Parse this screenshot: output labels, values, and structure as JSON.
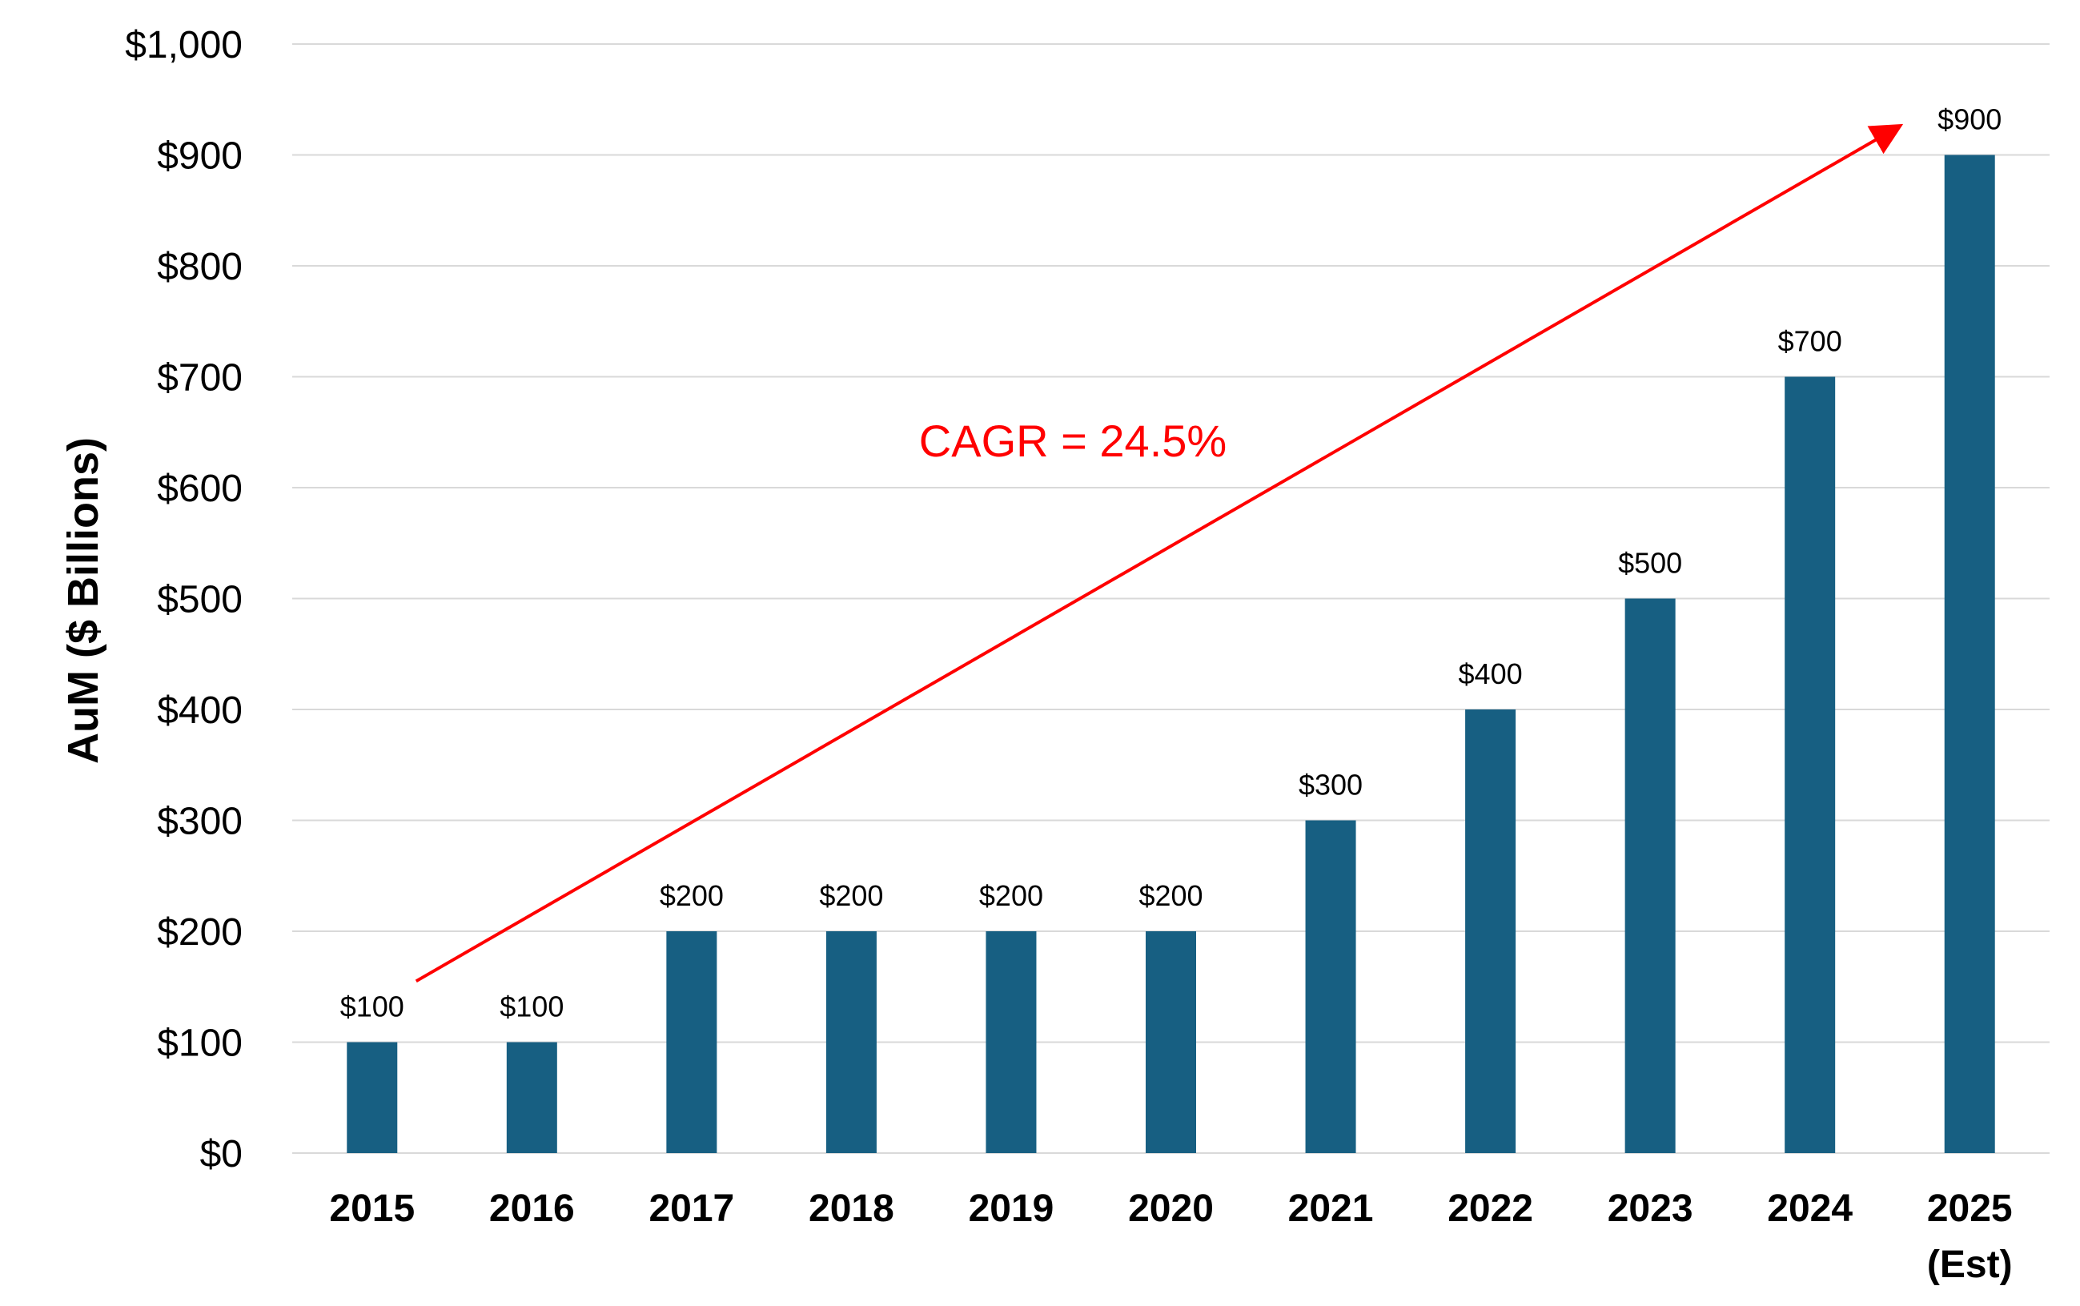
{
  "chart_data": {
    "type": "bar",
    "title": "",
    "xlabel": "",
    "ylabel": "AuM ($ Billions)",
    "categories": [
      "2015",
      "2016",
      "2017",
      "2018",
      "2019",
      "2020",
      "2021",
      "2022",
      "2023",
      "2024",
      "2025 (Est)"
    ],
    "category_lines": [
      [
        "2015"
      ],
      [
        "2016"
      ],
      [
        "2017"
      ],
      [
        "2018"
      ],
      [
        "2019"
      ],
      [
        "2020"
      ],
      [
        "2021"
      ],
      [
        "2022"
      ],
      [
        "2023"
      ],
      [
        "2024"
      ],
      [
        "2025",
        "(Est)"
      ]
    ],
    "series": [
      {
        "values": [
          100,
          100,
          200,
          200,
          200,
          200,
          300,
          400,
          500,
          700,
          900
        ],
        "data_labels": [
          "$100",
          "$100",
          "$200",
          "$200",
          "$200",
          "$200",
          "$300",
          "$400",
          "$500",
          "$700",
          "$900"
        ],
        "color": "#175f82"
      }
    ],
    "ylim": [
      0,
      1000
    ],
    "yticks": [
      0,
      100,
      200,
      300,
      400,
      500,
      600,
      700,
      800,
      900,
      1000
    ],
    "ytick_labels": [
      "$0",
      "$100",
      "$200",
      "$300",
      "$400",
      "$500",
      "$600",
      "$700",
      "$800",
      "$900",
      "$1,000"
    ],
    "grid": true,
    "gridline_color": "#d9d9d9",
    "legend": "none",
    "annotation": {
      "text": "CAGR = 24.5%",
      "color": "#ff0000",
      "arrow_from": {
        "category": "2015",
        "value": 155
      },
      "arrow_to": {
        "category": "2025 (Est)",
        "value": 925
      }
    }
  }
}
